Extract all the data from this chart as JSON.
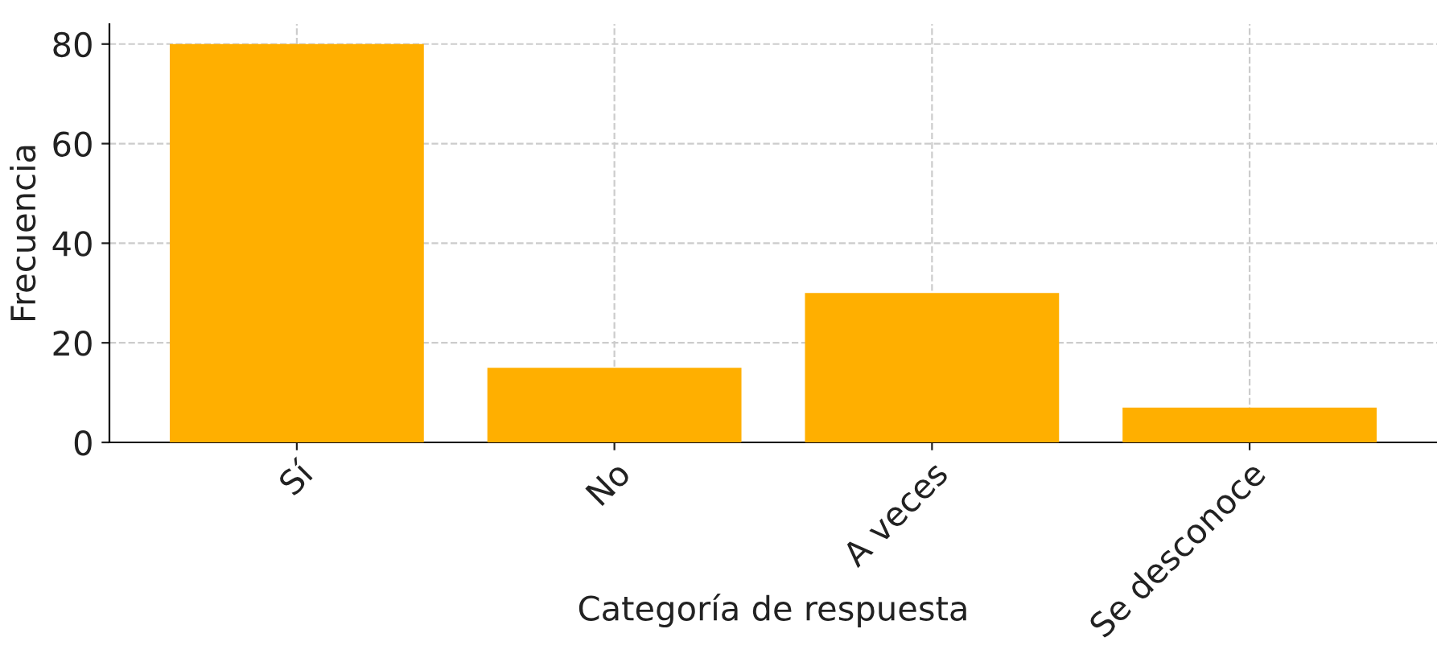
{
  "chart_data": {
    "type": "bar",
    "xlabel": "Categoría de respuesta",
    "ylabel": "Frecuencia",
    "categories": [
      "Sí",
      "No",
      "A veces",
      "Se desconoce"
    ],
    "values": [
      80,
      15,
      30,
      7
    ],
    "color": "#ffaf00",
    "ylim": [
      0,
      84
    ],
    "yticks": [
      0,
      20,
      40,
      60,
      80
    ],
    "grid": true,
    "line_style": "dashed"
  }
}
